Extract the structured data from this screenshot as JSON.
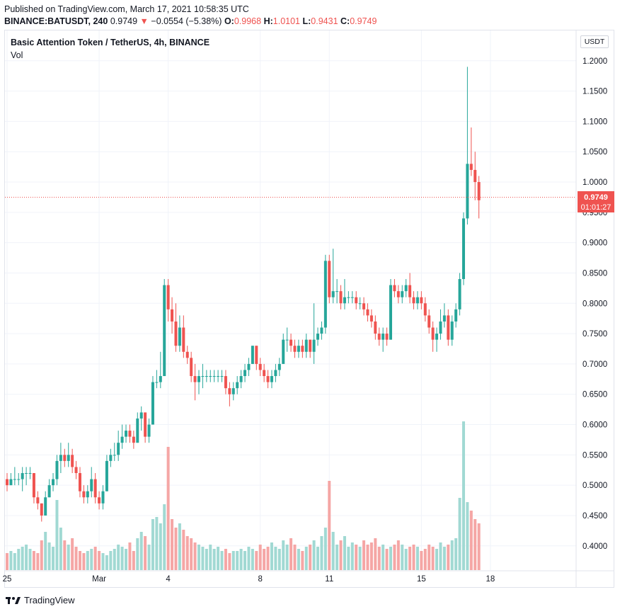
{
  "header": {
    "published": "Published on TradingView.com, March 17, 2021 10:58:35 UTC",
    "symbol_line": "BINANCE:BATUSDT, 240",
    "last": "0.9749",
    "change_arrow": "▼",
    "change": "−0.0554 (−5.38%)",
    "o_label": "O:",
    "o": "0.9968",
    "h_label": "H:",
    "h": "1.0101",
    "l_label": "L:",
    "l": "0.9431",
    "c_label": "C:",
    "c": "0.9749"
  },
  "legend": {
    "title": "Basic Attention Token / TetherUS, 4h, BINANCE",
    "vol": "Vol"
  },
  "price_tag": {
    "price": "0.9749",
    "countdown": "01:01:27"
  },
  "currency_badge": "USDT",
  "brand": {
    "name": "TradingView"
  },
  "colors": {
    "up": "#26a69a",
    "down": "#ef5350",
    "up_vol": "#a1d9d3",
    "down_vol": "#f5a6a5",
    "grid": "#f0f3fa"
  },
  "chart_data": {
    "type": "candlestick",
    "y_ticks": [
      "1.2000",
      "1.1500",
      "1.1000",
      "1.0500",
      "1.0000",
      "0.9500",
      "0.9000",
      "0.8500",
      "0.8000",
      "0.7500",
      "0.7000",
      "0.6500",
      "0.6000",
      "0.5500",
      "0.5000",
      "0.4500",
      "0.4000"
    ],
    "y_tick_values": [
      1.2,
      1.15,
      1.1,
      1.05,
      1.0,
      0.95,
      0.9,
      0.85,
      0.8,
      0.75,
      0.7,
      0.65,
      0.6,
      0.55,
      0.5,
      0.45,
      0.4
    ],
    "ylim": [
      0.36,
      1.25
    ],
    "x_ticks": [
      {
        "label": "25",
        "index": 0
      },
      {
        "label": "Mar",
        "index": 24
      },
      {
        "label": "4",
        "index": 42
      },
      {
        "label": "8",
        "index": 66
      },
      {
        "label": "11",
        "index": 84
      },
      {
        "label": "15",
        "index": 108
      },
      {
        "label": "18",
        "index": 126
      }
    ],
    "last_price": 0.9749,
    "candles": [
      [
        0.51,
        0.52,
        0.49,
        0.5
      ],
      [
        0.5,
        0.52,
        0.5,
        0.51
      ],
      [
        0.51,
        0.53,
        0.5,
        0.51
      ],
      [
        0.51,
        0.52,
        0.5,
        0.51
      ],
      [
        0.51,
        0.53,
        0.49,
        0.52
      ],
      [
        0.52,
        0.53,
        0.5,
        0.52
      ],
      [
        0.52,
        0.53,
        0.51,
        0.52
      ],
      [
        0.52,
        0.52,
        0.47,
        0.48
      ],
      [
        0.48,
        0.49,
        0.46,
        0.47
      ],
      [
        0.47,
        0.47,
        0.44,
        0.45
      ],
      [
        0.45,
        0.49,
        0.45,
        0.48
      ],
      [
        0.48,
        0.51,
        0.48,
        0.5
      ],
      [
        0.5,
        0.52,
        0.49,
        0.51
      ],
      [
        0.51,
        0.55,
        0.5,
        0.54
      ],
      [
        0.54,
        0.57,
        0.52,
        0.55
      ],
      [
        0.55,
        0.56,
        0.53,
        0.54
      ],
      [
        0.54,
        0.57,
        0.53,
        0.55
      ],
      [
        0.55,
        0.56,
        0.52,
        0.53
      ],
      [
        0.53,
        0.54,
        0.51,
        0.52
      ],
      [
        0.52,
        0.53,
        0.48,
        0.49
      ],
      [
        0.49,
        0.5,
        0.47,
        0.48
      ],
      [
        0.48,
        0.5,
        0.47,
        0.49
      ],
      [
        0.49,
        0.53,
        0.48,
        0.51
      ],
      [
        0.51,
        0.52,
        0.47,
        0.48
      ],
      [
        0.48,
        0.49,
        0.46,
        0.47
      ],
      [
        0.47,
        0.5,
        0.46,
        0.49
      ],
      [
        0.49,
        0.55,
        0.49,
        0.54
      ],
      [
        0.54,
        0.56,
        0.53,
        0.55
      ],
      [
        0.55,
        0.57,
        0.54,
        0.55
      ],
      [
        0.55,
        0.59,
        0.54,
        0.57
      ],
      [
        0.57,
        0.6,
        0.56,
        0.58
      ],
      [
        0.58,
        0.6,
        0.57,
        0.59
      ],
      [
        0.59,
        0.6,
        0.57,
        0.58
      ],
      [
        0.58,
        0.59,
        0.56,
        0.57
      ],
      [
        0.57,
        0.62,
        0.57,
        0.61
      ],
      [
        0.61,
        0.63,
        0.59,
        0.62
      ],
      [
        0.62,
        0.62,
        0.57,
        0.58
      ],
      [
        0.58,
        0.61,
        0.57,
        0.6
      ],
      [
        0.6,
        0.68,
        0.6,
        0.67
      ],
      [
        0.67,
        0.69,
        0.66,
        0.67
      ],
      [
        0.67,
        0.72,
        0.66,
        0.68
      ],
      [
        0.68,
        0.84,
        0.68,
        0.83
      ],
      [
        0.83,
        0.84,
        0.77,
        0.79
      ],
      [
        0.79,
        0.81,
        0.75,
        0.77
      ],
      [
        0.77,
        0.8,
        0.72,
        0.73
      ],
      [
        0.73,
        0.78,
        0.72,
        0.76
      ],
      [
        0.76,
        0.78,
        0.71,
        0.72
      ],
      [
        0.72,
        0.73,
        0.7,
        0.71
      ],
      [
        0.71,
        0.72,
        0.67,
        0.68
      ],
      [
        0.68,
        0.7,
        0.64,
        0.67
      ],
      [
        0.67,
        0.69,
        0.65,
        0.68
      ],
      [
        0.68,
        0.7,
        0.66,
        0.68
      ],
      [
        0.68,
        0.69,
        0.67,
        0.68
      ],
      [
        0.68,
        0.69,
        0.67,
        0.68
      ],
      [
        0.68,
        0.69,
        0.67,
        0.68
      ],
      [
        0.68,
        0.69,
        0.67,
        0.68
      ],
      [
        0.68,
        0.69,
        0.67,
        0.68
      ],
      [
        0.68,
        0.69,
        0.65,
        0.66
      ],
      [
        0.66,
        0.67,
        0.63,
        0.65
      ],
      [
        0.65,
        0.67,
        0.64,
        0.66
      ],
      [
        0.66,
        0.68,
        0.65,
        0.67
      ],
      [
        0.67,
        0.69,
        0.66,
        0.68
      ],
      [
        0.68,
        0.7,
        0.67,
        0.69
      ],
      [
        0.69,
        0.71,
        0.68,
        0.7
      ],
      [
        0.7,
        0.73,
        0.7,
        0.73
      ],
      [
        0.73,
        0.73,
        0.69,
        0.7
      ],
      [
        0.7,
        0.71,
        0.68,
        0.69
      ],
      [
        0.69,
        0.7,
        0.67,
        0.68
      ],
      [
        0.68,
        0.69,
        0.66,
        0.67
      ],
      [
        0.67,
        0.69,
        0.66,
        0.68
      ],
      [
        0.68,
        0.7,
        0.67,
        0.69
      ],
      [
        0.69,
        0.71,
        0.68,
        0.7
      ],
      [
        0.7,
        0.75,
        0.7,
        0.74
      ],
      [
        0.74,
        0.76,
        0.72,
        0.74
      ],
      [
        0.74,
        0.75,
        0.72,
        0.73
      ],
      [
        0.73,
        0.74,
        0.71,
        0.72
      ],
      [
        0.72,
        0.74,
        0.71,
        0.73
      ],
      [
        0.73,
        0.74,
        0.71,
        0.72
      ],
      [
        0.72,
        0.75,
        0.71,
        0.74
      ],
      [
        0.74,
        0.74,
        0.71,
        0.72
      ],
      [
        0.72,
        0.8,
        0.7,
        0.74
      ],
      [
        0.74,
        0.76,
        0.73,
        0.75
      ],
      [
        0.75,
        0.77,
        0.74,
        0.76
      ],
      [
        0.76,
        0.88,
        0.75,
        0.87
      ],
      [
        0.87,
        0.88,
        0.8,
        0.81
      ],
      [
        0.81,
        0.89,
        0.8,
        0.82
      ],
      [
        0.82,
        0.84,
        0.8,
        0.82
      ],
      [
        0.82,
        0.83,
        0.79,
        0.8
      ],
      [
        0.8,
        0.84,
        0.79,
        0.81
      ],
      [
        0.81,
        0.82,
        0.8,
        0.81
      ],
      [
        0.81,
        0.82,
        0.8,
        0.81
      ],
      [
        0.81,
        0.82,
        0.79,
        0.8
      ],
      [
        0.8,
        0.81,
        0.79,
        0.8
      ],
      [
        0.8,
        0.81,
        0.78,
        0.79
      ],
      [
        0.79,
        0.8,
        0.77,
        0.78
      ],
      [
        0.78,
        0.79,
        0.76,
        0.77
      ],
      [
        0.77,
        0.78,
        0.74,
        0.75
      ],
      [
        0.75,
        0.76,
        0.73,
        0.74
      ],
      [
        0.74,
        0.76,
        0.72,
        0.75
      ],
      [
        0.75,
        0.76,
        0.73,
        0.74
      ],
      [
        0.74,
        0.84,
        0.74,
        0.83
      ],
      [
        0.83,
        0.84,
        0.81,
        0.82
      ],
      [
        0.82,
        0.83,
        0.8,
        0.81
      ],
      [
        0.81,
        0.83,
        0.8,
        0.82
      ],
      [
        0.82,
        0.84,
        0.81,
        0.83
      ],
      [
        0.83,
        0.85,
        0.8,
        0.81
      ],
      [
        0.81,
        0.82,
        0.79,
        0.8
      ],
      [
        0.8,
        0.82,
        0.79,
        0.81
      ],
      [
        0.81,
        0.82,
        0.79,
        0.8
      ],
      [
        0.8,
        0.81,
        0.77,
        0.78
      ],
      [
        0.78,
        0.79,
        0.75,
        0.76
      ],
      [
        0.76,
        0.77,
        0.72,
        0.74
      ],
      [
        0.74,
        0.76,
        0.72,
        0.75
      ],
      [
        0.75,
        0.79,
        0.74,
        0.77
      ],
      [
        0.77,
        0.8,
        0.76,
        0.78
      ],
      [
        0.78,
        0.79,
        0.73,
        0.74
      ],
      [
        0.74,
        0.78,
        0.73,
        0.77
      ],
      [
        0.77,
        0.8,
        0.76,
        0.79
      ],
      [
        0.79,
        0.85,
        0.78,
        0.84
      ],
      [
        0.84,
        0.95,
        0.83,
        0.94
      ],
      [
        0.94,
        1.19,
        0.93,
        1.03
      ],
      [
        1.03,
        1.09,
        1.01,
        1.02
      ],
      [
        1.02,
        1.05,
        0.97,
        1.0
      ],
      [
        1.0,
        1.01,
        0.94,
        0.97
      ]
    ],
    "volumes": [
      0.38,
      0.38,
      0.38,
      0.38,
      0.38,
      0.38,
      0.38,
      0.38,
      0.38,
      0.38,
      0.38,
      0.38,
      0.38,
      0.38,
      0.38,
      0.38,
      0.38,
      0.38,
      0.38,
      0.38,
      0.38,
      0.38,
      0.38,
      0.38,
      0.38,
      0.38,
      0.38,
      0.38,
      0.38,
      0.38,
      0.38,
      0.38,
      0.38,
      0.38,
      0.38,
      0.38,
      0.38,
      0.38,
      0.38,
      0.38,
      0.38,
      0.38,
      0.38,
      0.38,
      0.38,
      0.38,
      0.38,
      0.38,
      0.38,
      0.38,
      0.38,
      0.38,
      0.38,
      0.38,
      0.38,
      0.38,
      0.38,
      0.38,
      0.38,
      0.38,
      0.38,
      0.38,
      0.38,
      0.38,
      0.38,
      0.38,
      0.38,
      0.38,
      0.38,
      0.38,
      0.38,
      0.38,
      0.38,
      0.38,
      0.38,
      0.38,
      0.38,
      0.38,
      0.38,
      0.38,
      0.38,
      0.38,
      0.38,
      0.38,
      0.38,
      0.38,
      0.38,
      0.38,
      0.38,
      0.38,
      0.38,
      0.38,
      0.38,
      0.38,
      0.38,
      0.38,
      0.38,
      0.38,
      0.38,
      0.38,
      0.38,
      0.38,
      0.38,
      0.38,
      0.38,
      0.38,
      0.38,
      0.38,
      0.38,
      0.38,
      0.38,
      0.38,
      0.38,
      0.38,
      0.38,
      0.38,
      0.38,
      0.38,
      0.38,
      0.38,
      0.38,
      0.38,
      0.38
    ],
    "volume_levels": [
      8,
      9,
      8,
      10,
      11,
      12,
      10,
      9,
      8,
      14,
      18,
      13,
      11,
      33,
      20,
      14,
      12,
      15,
      11,
      9,
      8,
      9,
      10,
      11,
      9,
      8,
      7,
      9,
      10,
      12,
      11,
      10,
      13,
      9,
      15,
      18,
      16,
      12,
      24,
      25,
      22,
      31,
      58,
      24,
      20,
      22,
      19,
      16,
      15,
      13,
      12,
      11,
      10,
      12,
      10,
      11,
      9,
      10,
      8,
      9,
      9,
      10,
      9,
      11,
      10,
      9,
      12,
      10,
      11,
      13,
      11,
      10,
      14,
      12,
      15,
      12,
      10,
      9,
      11,
      12,
      14,
      11,
      16,
      20,
      42,
      18,
      12,
      14,
      16,
      11,
      13,
      12,
      11,
      14,
      12,
      13,
      15,
      11,
      12,
      10,
      11,
      12,
      14,
      12,
      10,
      11,
      12,
      11,
      9,
      10,
      12,
      11,
      10,
      13,
      11,
      12,
      14,
      15,
      34,
      70,
      32,
      28,
      24,
      22,
      20
    ]
  }
}
